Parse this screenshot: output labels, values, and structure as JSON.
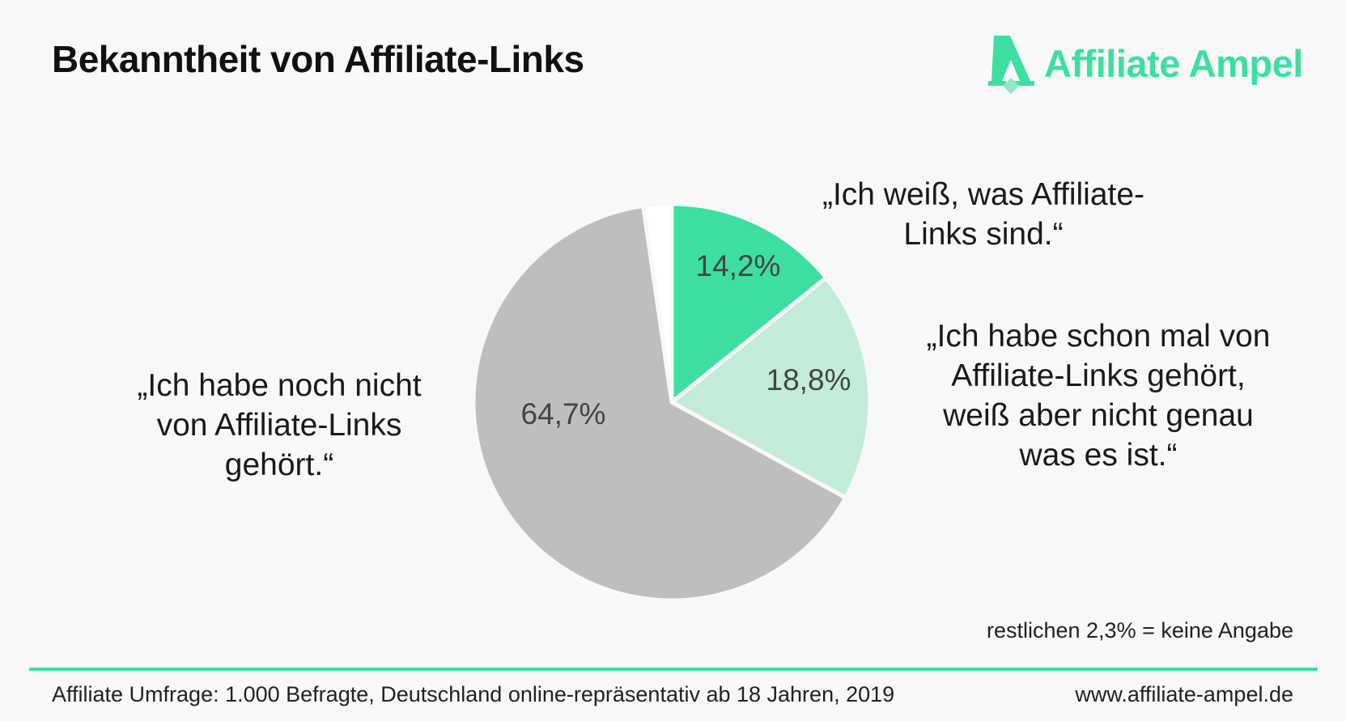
{
  "header": {
    "title": "Bekanntheit von Affiliate-Links",
    "logo_text": "Affiliate Ampel",
    "brand_color": "#3ddfa0"
  },
  "chart_data": {
    "type": "pie",
    "title": "Bekanntheit von Affiliate-Links",
    "slices": [
      {
        "label": "„Ich weiß, was Affiliate-\nLinks sind.“",
        "value": 14.2,
        "value_label": "14,2%",
        "color": "#3ddfa0"
      },
      {
        "label": "„Ich habe schon mal von\nAffiliate-Links gehört,\nweiß aber nicht genau\nwas es ist.“",
        "value": 18.8,
        "value_label": "18,8%",
        "color": "#c3ecd8"
      },
      {
        "label": "„Ich habe noch nicht\nvon Affiliate-Links\ngehört.“",
        "value": 64.7,
        "value_label": "64,7%",
        "color": "#bebebe"
      },
      {
        "label": "keine Angabe",
        "value": 2.3,
        "value_label": "",
        "color": "#ffffff"
      }
    ],
    "start_angle": "12 o'clock",
    "direction": "clockwise"
  },
  "note": "restlichen 2,3% = keine Angabe",
  "footer": {
    "source": "Affiliate Umfrage: 1.000 Befragte, Deutschland online-repräsentativ ab 18 Jahren, 2019",
    "url": "www.affiliate-ampel.de"
  }
}
